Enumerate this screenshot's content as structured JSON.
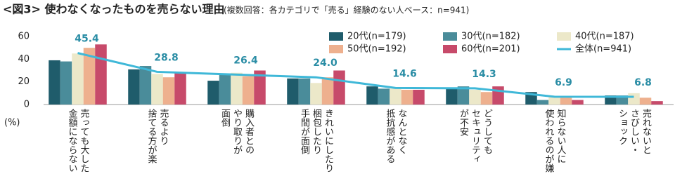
{
  "chart_data": {
    "type": "bar",
    "title": "<図3> 使わなくなったものを売らない理由",
    "subtitle": "(複数回答：各カテゴリで「売る」経験のない人ベース：n=941)",
    "y_unit": "(%)",
    "categories": [
      "売っても大した\n金額にならない",
      "売るより\n捨てる方が楽",
      "購入者との\nやり取りが\n面倒",
      "きれいにしたり\n梱包したり\n手間が面倒",
      "なんとなく\n抵抗感がある",
      "どうしても\nセキュリティ\nが不安",
      "知らない人に\n使われるのが嫌",
      "売れないと\nさびしい・\nショック"
    ],
    "series": [
      {
        "name": "20代(n=179)",
        "color": "#1f5c6b",
        "values": [
          39,
          31,
          21,
          23,
          16,
          14,
          11,
          8
        ]
      },
      {
        "name": "30代(n=182)",
        "color": "#4a8c9a",
        "values": [
          38,
          34,
          26,
          23,
          14,
          16,
          4,
          8
        ]
      },
      {
        "name": "40代(n=187)",
        "color": "#ece8c9",
        "values": [
          45,
          27,
          28,
          19,
          14,
          13,
          7,
          10
        ]
      },
      {
        "name": "50代(n=192)",
        "color": "#eeb08e",
        "values": [
          50,
          24,
          25,
          24,
          13,
          11,
          6,
          6
        ]
      },
      {
        "name": "60代(n=201)",
        "color": "#c74a6a",
        "values": [
          53,
          28,
          30,
          30,
          13,
          16,
          4,
          3
        ]
      },
      {
        "name": "全体(n=941)",
        "type": "line",
        "color": "#3fb8d8",
        "values": [
          45.4,
          28.8,
          26.4,
          24.0,
          14.6,
          14.3,
          6.9,
          6.8
        ],
        "value_labels": [
          "45.4",
          "28.8",
          "26.4",
          "24.0",
          "14.6",
          "14.3",
          "6.9",
          "6.8"
        ]
      }
    ],
    "ylim": [
      0,
      60
    ],
    "yticks": [
      0,
      20,
      40,
      60
    ],
    "grid": false
  }
}
